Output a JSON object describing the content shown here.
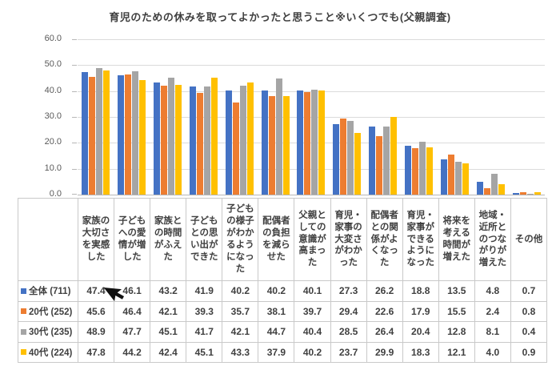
{
  "chart_data": {
    "type": "bar",
    "title": "育児のための休みを取ってよかったと思うこと※いくつでも(父親調査)",
    "categories": [
      "家族の大切さを実感した",
      "子どもへの愛情が増した",
      "家族との時間がふえた",
      "子どもとの思い出ができた",
      "子どもの様子がわかるようになった",
      "配偶者の負担を減らせた",
      "父親としての意識が高まった",
      "育児・家事の大変さがわかった",
      "配偶者との関係がよくなった",
      "育児・家事ができるようになった",
      "将来を考える時間が増えた",
      "地域・近所とのつながりが増えた",
      "その他"
    ],
    "series": [
      {
        "name": "全体 (711)",
        "color": "#4472c4",
        "values": [
          47.4,
          46.1,
          43.2,
          41.9,
          40.2,
          40.2,
          40.1,
          27.3,
          26.2,
          18.8,
          13.5,
          4.8,
          0.7
        ]
      },
      {
        "name": "20代 (252)",
        "color": "#ed7d31",
        "values": [
          45.6,
          46.4,
          42.1,
          39.3,
          35.7,
          38.1,
          39.7,
          29.4,
          22.6,
          17.9,
          15.5,
          2.4,
          0.8
        ]
      },
      {
        "name": "30代 (235)",
        "color": "#a5a5a5",
        "values": [
          48.9,
          47.7,
          45.1,
          41.7,
          42.1,
          44.7,
          40.4,
          28.5,
          26.4,
          20.4,
          12.8,
          8.1,
          0.4
        ]
      },
      {
        "name": "40代 (224)",
        "color": "#ffc000",
        "values": [
          47.8,
          44.2,
          42.4,
          45.1,
          43.3,
          37.9,
          40.2,
          23.7,
          29.9,
          18.3,
          12.1,
          4.0,
          0.9
        ]
      }
    ],
    "xlabel": "",
    "ylabel": "",
    "ylim": [
      0,
      60
    ],
    "yticks": [
      "0.0",
      "10.0",
      "20.0",
      "30.0",
      "40.0",
      "50.0",
      "60.0"
    ],
    "grid": true,
    "legend_position": "table-left",
    "axis_text_color": "#595959",
    "gridline_color": "#dbdbdb"
  },
  "cursor": {
    "shape": "arrow-pointer",
    "color": "#111111"
  }
}
